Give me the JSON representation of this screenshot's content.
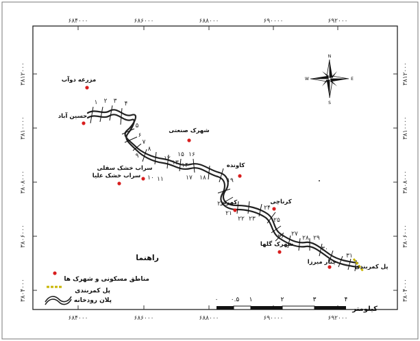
{
  "map": {
    "top_coords": [
      "۶۸۴۰۰۰",
      "۶۸۶۰۰۰",
      "۶۸۸۰۰۰",
      "۶۹۰۰۰۰",
      "۶۹۲۰۰۰"
    ],
    "bottom_coords": [
      "۶۸۴۰۰۰",
      "۶۸۶۰۰۰",
      "۶۸۸۰۰۰",
      "۶۹۰۰۰۰",
      "۶۹۲۰۰۰"
    ],
    "left_coords": [
      "۳۸۱۲۰۰۰",
      "۳۸۱۰۰۰۰",
      "۳۸۰۸۰۰۰",
      "۳۸۰۶۰۰۰",
      "۳۸۰۴۰۰۰"
    ],
    "right_coords": [
      "۳۸۱۲۰۰۰",
      "۳۸۱۰۰۰۰",
      "۳۸۰۸۰۰۰",
      "۳۸۰۶۰۰۰",
      "۳۸۰۴۰۰۰"
    ],
    "settlements": [
      {
        "name": "مزرعه دوآب"
      },
      {
        "name": "حسین آباد"
      },
      {
        "name": "شهرک صنعتی"
      },
      {
        "name": "سراب خشک سفلی"
      },
      {
        "name": "سراب خشک علیا"
      },
      {
        "name": "کاونده"
      },
      {
        "name": "کرناچی"
      },
      {
        "name": "کهریز"
      },
      {
        "name": "شهرک گلها"
      },
      {
        "name": "چنار میرزا"
      }
    ],
    "bridge_label": "پل کمربندی",
    "section_numbers": [
      "۱",
      "۲",
      "۳",
      "۴",
      "۵",
      "۶",
      "۷",
      "۸",
      "۹",
      "۱۰",
      "۱۱",
      "۱۲",
      "۱۳",
      "۱۴",
      "۱۵",
      "۱۶",
      "۱۷",
      "۱۸",
      "۱۹",
      "۲۰",
      "۲۱",
      "۲۲",
      "۲۳",
      "۲۴",
      "۲۵",
      "۲۶",
      "۲۷",
      "۲۸",
      "۲۹",
      "۳۰",
      "۳۱"
    ],
    "compass": {
      "n": "N",
      "s": "S",
      "e": "E",
      "w": "W"
    },
    "legend": {
      "title": "راهنما",
      "items": [
        {
          "label": "مناطق مسکونی و شهرک ها",
          "icon": "red-dot-icon",
          "color": "#d81e1e"
        },
        {
          "label": "پل کمربندی",
          "icon": "bridge-line-icon",
          "color": "#c8b400"
        },
        {
          "label": "پلان رودخانه",
          "icon": "river-wave-icon",
          "color": "#222222"
        }
      ]
    },
    "scale": {
      "ticks": [
        "۰",
        "۰.۵",
        "۱",
        "۲",
        "۳",
        "۴"
      ],
      "unit": "کیلومتر"
    }
  }
}
